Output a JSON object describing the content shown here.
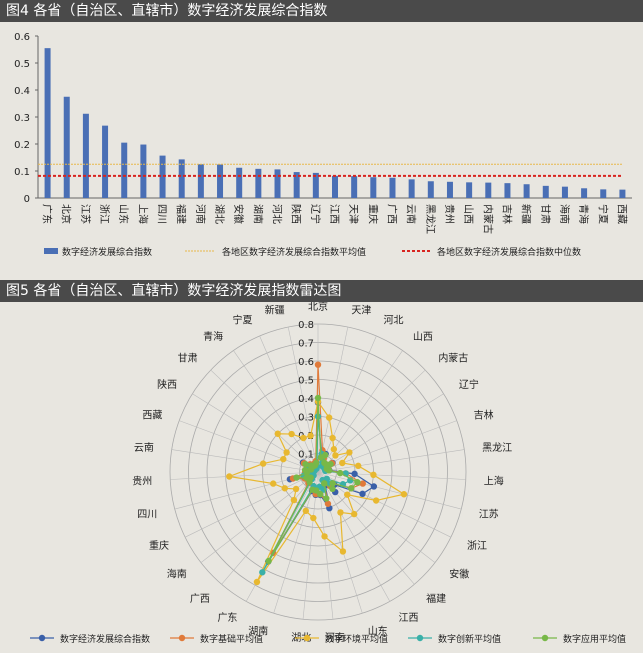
{
  "charts": {
    "fig4_title": "图4 各省（自治区、直辖市）数字经济发展综合指数",
    "fig5_title": "图5 各省（自治区、直辖市）数字经济发展指数雷达图"
  },
  "chart_data": [
    {
      "type": "bar",
      "title": "图4 各省（自治区、直辖市）数字经济发展综合指数",
      "categories": [
        "广东",
        "北京",
        "江苏",
        "浙江",
        "山东",
        "上海",
        "四川",
        "福建",
        "河南",
        "湖北",
        "安徽",
        "湖南",
        "河北",
        "陕西",
        "辽宁",
        "江西",
        "天津",
        "重庆",
        "广西",
        "云南",
        "黑龙江",
        "贵州",
        "山西",
        "内蒙古",
        "吉林",
        "新疆",
        "甘肃",
        "海南",
        "青海",
        "宁夏",
        "西藏"
      ],
      "values": [
        0.555,
        0.375,
        0.312,
        0.268,
        0.205,
        0.198,
        0.157,
        0.143,
        0.125,
        0.124,
        0.112,
        0.108,
        0.106,
        0.096,
        0.093,
        0.082,
        0.081,
        0.077,
        0.075,
        0.069,
        0.062,
        0.06,
        0.058,
        0.057,
        0.055,
        0.051,
        0.045,
        0.042,
        0.036,
        0.032,
        0.031
      ],
      "series_name": "数字经济发展综合指数",
      "mean": 0.125,
      "mean_label": "各地区数字经济发展综合指数平均值",
      "median": 0.082,
      "median_label": "各地区数字经济发展综合指数中位数",
      "ylim": [
        0,
        0.6
      ],
      "yticks": [
        "0",
        "0.1",
        "0.2",
        "0.3",
        "0.4",
        "0.5",
        "0.6"
      ],
      "ytick_values": [
        0,
        0.1,
        0.2,
        0.3,
        0.4,
        0.5,
        0.6
      ],
      "legend_position": "bottom",
      "colors": {
        "bar": "#4a6fb5",
        "mean": "#e8b84a",
        "median": "#d8241f"
      }
    },
    {
      "type": "radar",
      "title": "图5 各省（自治区、直辖市）数字经济发展指数雷达图",
      "categories": [
        "北京",
        "天津",
        "河北",
        "山西",
        "内蒙古",
        "辽宁",
        "吉林",
        "黑龙江",
        "上海",
        "江苏",
        "浙江",
        "安徽",
        "福建",
        "江西",
        "山东",
        "河南",
        "湖北",
        "湖南",
        "广东",
        "广西",
        "海南",
        "重庆",
        "四川",
        "贵州",
        "云南",
        "西藏",
        "陕西",
        "甘肃",
        "青海",
        "宁夏",
        "新疆"
      ],
      "rlim": [
        0,
        0.8
      ],
      "rticks": [
        "0",
        "0.1",
        "0.2",
        "0.3",
        "0.4",
        "0.5",
        "0.6",
        "0.7",
        "0.8"
      ],
      "rtick_values": [
        0,
        0.1,
        0.2,
        0.3,
        0.4,
        0.5,
        0.6,
        0.7,
        0.8
      ],
      "legend_position": "bottom",
      "series": [
        {
          "name": "数字经济发展综合指数",
          "color": "#3a5fa8",
          "values": [
            0.375,
            0.081,
            0.106,
            0.058,
            0.057,
            0.093,
            0.055,
            0.062,
            0.198,
            0.312,
            0.268,
            0.112,
            0.143,
            0.082,
            0.205,
            0.125,
            0.124,
            0.108,
            0.555,
            0.075,
            0.042,
            0.077,
            0.157,
            0.06,
            0.069,
            0.031,
            0.096,
            0.045,
            0.036,
            0.032,
            0.051
          ]
        },
        {
          "name": "数字基础平均值",
          "color": "#e07a3a",
          "values": [
            0.58,
            0.12,
            0.08,
            0.06,
            0.06,
            0.09,
            0.06,
            0.06,
            0.15,
            0.25,
            0.2,
            0.1,
            0.1,
            0.07,
            0.18,
            0.12,
            0.12,
            0.1,
            0.5,
            0.08,
            0.06,
            0.08,
            0.14,
            0.07,
            0.07,
            0.05,
            0.09,
            0.06,
            0.05,
            0.05,
            0.06
          ]
        },
        {
          "name": "数字环境平均值",
          "color": "#e8b830",
          "values": [
            0.38,
            0.3,
            0.2,
            0.15,
            0.13,
            0.2,
            0.14,
            0.22,
            0.3,
            0.48,
            0.35,
            0.2,
            0.3,
            0.25,
            0.45,
            0.35,
            0.25,
            0.22,
            0.68,
            0.2,
            0.15,
            0.2,
            0.25,
            0.48,
            0.3,
            0.2,
            0.2,
            0.3,
            0.25,
            0.2,
            0.2
          ]
        },
        {
          "name": "数字创新平均值",
          "color": "#3ab0a8",
          "values": [
            0.3,
            0.1,
            0.06,
            0.04,
            0.04,
            0.06,
            0.04,
            0.04,
            0.15,
            0.18,
            0.15,
            0.06,
            0.08,
            0.05,
            0.1,
            0.08,
            0.1,
            0.08,
            0.62,
            0.05,
            0.03,
            0.05,
            0.08,
            0.04,
            0.04,
            0.02,
            0.06,
            0.03,
            0.02,
            0.02,
            0.03
          ]
        },
        {
          "name": "数字应用平均值",
          "color": "#78b848",
          "values": [
            0.4,
            0.08,
            0.1,
            0.06,
            0.06,
            0.08,
            0.05,
            0.06,
            0.12,
            0.22,
            0.2,
            0.1,
            0.12,
            0.07,
            0.15,
            0.12,
            0.1,
            0.1,
            0.55,
            0.07,
            0.05,
            0.07,
            0.12,
            0.06,
            0.07,
            0.04,
            0.08,
            0.05,
            0.04,
            0.04,
            0.05
          ]
        }
      ]
    }
  ]
}
